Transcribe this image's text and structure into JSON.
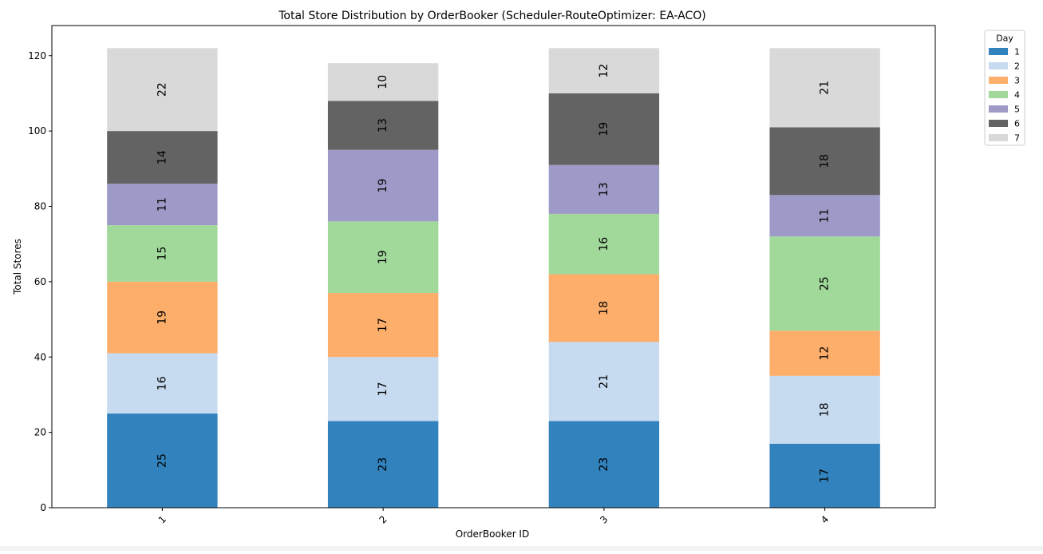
{
  "chart_data": {
    "type": "bar",
    "stacked": true,
    "title": "Total Store Distribution by OrderBooker (Scheduler-RouteOptimizer: EA-ACO)",
    "xlabel": "OrderBooker ID",
    "ylabel": "Total Stores",
    "categories": [
      "1",
      "2",
      "3",
      "4"
    ],
    "ylim": [
      0,
      128
    ],
    "yticks": [
      0,
      20,
      40,
      60,
      80,
      100,
      120
    ],
    "grid": false,
    "legend": {
      "title": "Day",
      "placement": "outside-top-right"
    },
    "series": [
      {
        "name": "1",
        "color": "#3182bd",
        "values": [
          25,
          23,
          23,
          17
        ]
      },
      {
        "name": "2",
        "color": "#c6dbef",
        "values": [
          16,
          17,
          21,
          18
        ]
      },
      {
        "name": "3",
        "color": "#fdae6b",
        "values": [
          19,
          17,
          18,
          12
        ]
      },
      {
        "name": "4",
        "color": "#a1d99b",
        "values": [
          15,
          19,
          16,
          25
        ]
      },
      {
        "name": "5",
        "color": "#9e9ac8",
        "values": [
          11,
          19,
          13,
          11
        ]
      },
      {
        "name": "6",
        "color": "#636363",
        "values": [
          14,
          13,
          19,
          18
        ]
      },
      {
        "name": "7",
        "color": "#d9d9d9",
        "values": [
          22,
          10,
          12,
          21
        ]
      }
    ]
  }
}
